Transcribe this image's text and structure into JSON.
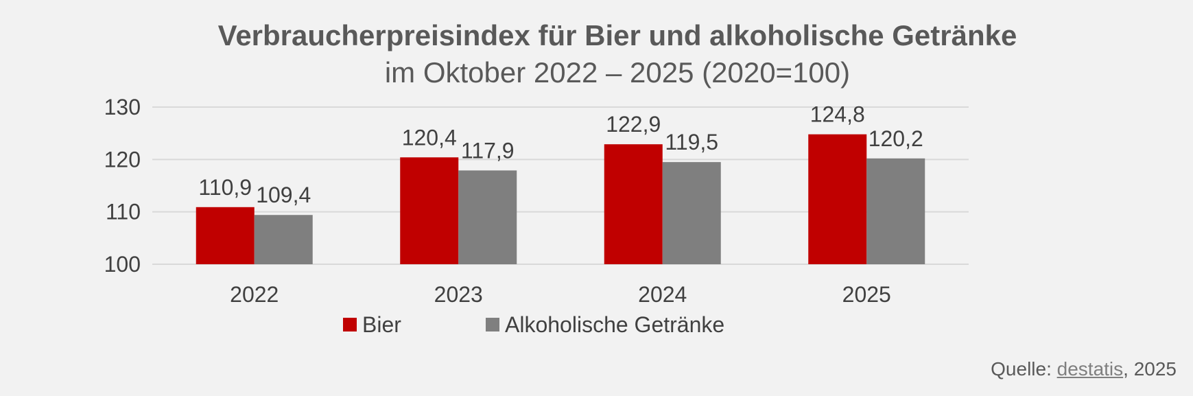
{
  "chart_data": {
    "type": "bar",
    "title": "Verbraucherpreisindex für Bier und alkoholische Getränke",
    "subtitle": "im Oktober 2022 – 2025 (2020=100)",
    "categories": [
      "2022",
      "2023",
      "2024",
      "2025"
    ],
    "series": [
      {
        "name": "Bier",
        "color": "#c00000",
        "values": [
          110.9,
          120.4,
          122.9,
          124.8
        ],
        "labels": [
          "110,9",
          "120,4",
          "122,9",
          "124,8"
        ]
      },
      {
        "name": "Alkoholische Getränke",
        "color": "#7f7f7f",
        "values": [
          109.4,
          117.9,
          119.5,
          120.2
        ],
        "labels": [
          "109,4",
          "117,9",
          "119,5",
          "120,2"
        ]
      }
    ],
    "yticks": [
      "100",
      "110",
      "120",
      "130"
    ],
    "ylim": [
      100,
      130
    ],
    "grid": true,
    "legend": "bottom"
  },
  "source": {
    "prefix": "Quelle: ",
    "link_text": "destatis",
    "suffix": ", 2025"
  }
}
